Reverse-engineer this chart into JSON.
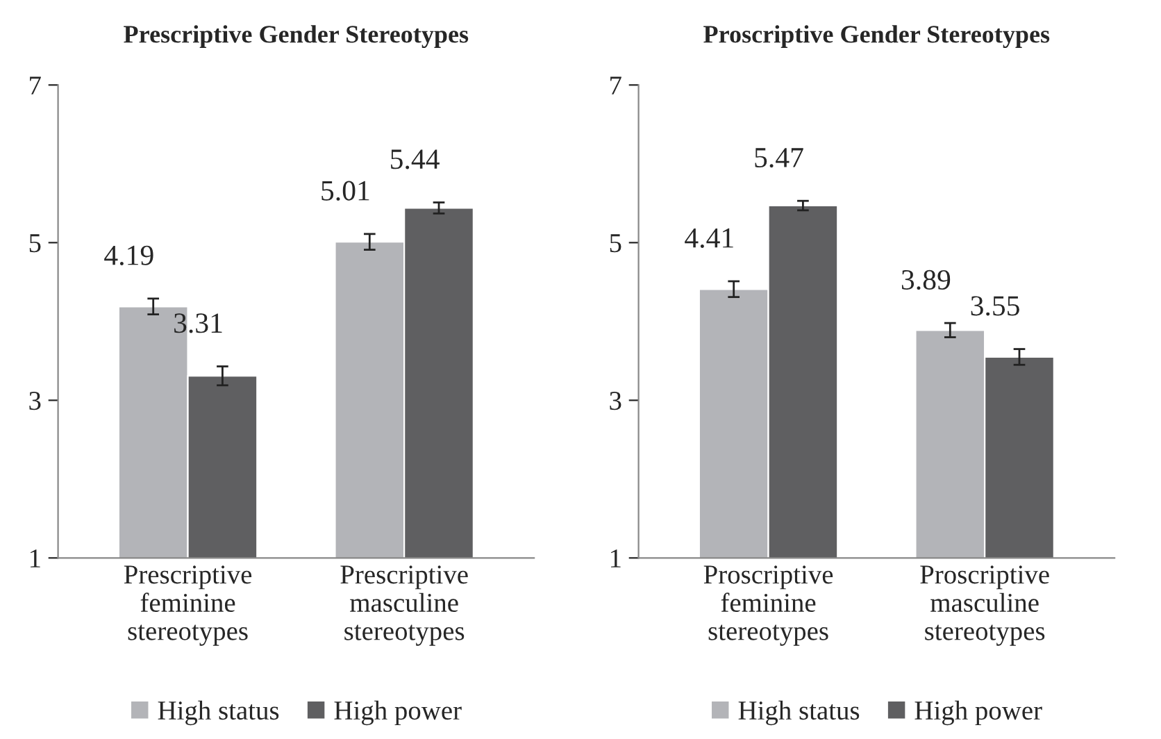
{
  "chart_data": [
    {
      "type": "bar",
      "title": "Prescriptive Gender Stereotypes",
      "categories": [
        "Prescriptive\nfeminine\nstereotypes",
        "Prescriptive\nmasculine\nstereotypes"
      ],
      "series": [
        {
          "name": "High status",
          "color": "#b3b4b8",
          "values": [
            4.19,
            5.01
          ],
          "errors": [
            0.1,
            0.1
          ]
        },
        {
          "name": "High power",
          "color": "#5f5f61",
          "values": [
            3.31,
            5.44
          ],
          "errors": [
            0.12,
            0.07
          ]
        }
      ],
      "ylim": [
        1,
        7
      ],
      "yticks": [
        1,
        3,
        5,
        7
      ],
      "data_labels": true,
      "legend": "bottom",
      "grid": false
    },
    {
      "type": "bar",
      "title": "Proscriptive Gender Stereotypes",
      "categories": [
        "Proscriptive\nfeminine\nstereotypes",
        "Proscriptive\nmasculine\nstereotypes"
      ],
      "series": [
        {
          "name": "High status",
          "color": "#b3b4b8",
          "values": [
            4.41,
            3.89
          ],
          "errors": [
            0.1,
            0.09
          ]
        },
        {
          "name": "High power",
          "color": "#5f5f61",
          "values": [
            5.47,
            3.55
          ],
          "errors": [
            0.06,
            0.1
          ]
        }
      ],
      "ylim": [
        1,
        7
      ],
      "yticks": [
        1,
        3,
        5,
        7
      ],
      "data_labels": true,
      "legend": "bottom",
      "grid": false
    }
  ]
}
